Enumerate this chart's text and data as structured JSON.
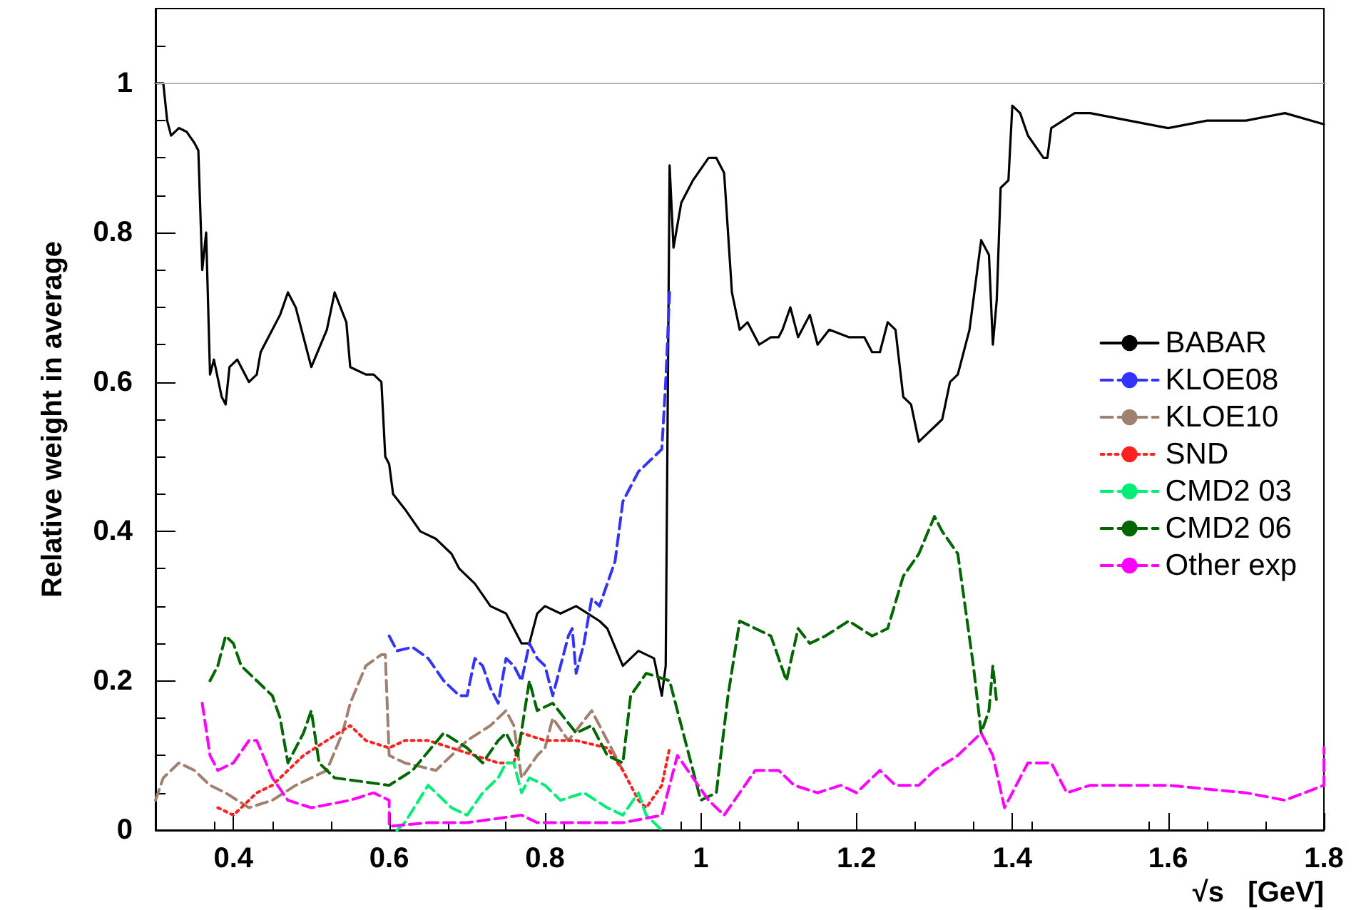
{
  "chart_data": {
    "type": "line",
    "xlabel": "√s   [GeV]",
    "ylabel": "Relative weight in average",
    "xlim": [
      0.3,
      1.8
    ],
    "ylim": [
      0,
      1.1
    ],
    "xticks": [
      0.4,
      0.6,
      0.8,
      1,
      1.2,
      1.4,
      1.6,
      1.8
    ],
    "yticks": [
      0,
      0.2,
      0.4,
      0.6,
      0.8,
      1
    ],
    "grid": false,
    "legend": "right",
    "marker": "none",
    "ref_lines": [
      {
        "axis": "y",
        "value": 1,
        "color": "#b0b0b0",
        "line_style": "solid"
      }
    ],
    "series": [
      {
        "name": "BABAR",
        "color": "#000000",
        "line_style": "solid",
        "x": [
          0.3,
          0.31,
          0.315,
          0.32,
          0.33,
          0.34,
          0.35,
          0.355,
          0.36,
          0.365,
          0.37,
          0.375,
          0.385,
          0.39,
          0.395,
          0.405,
          0.42,
          0.43,
          0.435,
          0.45,
          0.46,
          0.47,
          0.48,
          0.5,
          0.52,
          0.53,
          0.545,
          0.55,
          0.57,
          0.58,
          0.59,
          0.595,
          0.6,
          0.605,
          0.62,
          0.64,
          0.66,
          0.68,
          0.69,
          0.71,
          0.73,
          0.75,
          0.77,
          0.78,
          0.79,
          0.8,
          0.82,
          0.84,
          0.87,
          0.88,
          0.9,
          0.92,
          0.94,
          0.95,
          0.955,
          0.96,
          0.965,
          0.975,
          0.99,
          1.01,
          1.02,
          1.03,
          1.04,
          1.05,
          1.06,
          1.065,
          1.075,
          1.09,
          1.1,
          1.105,
          1.115,
          1.125,
          1.14,
          1.15,
          1.165,
          1.19,
          1.21,
          1.22,
          1.23,
          1.24,
          1.25,
          1.26,
          1.27,
          1.28,
          1.29,
          1.3,
          1.31,
          1.32,
          1.33,
          1.345,
          1.35,
          1.36,
          1.37,
          1.375,
          1.38,
          1.385,
          1.395,
          1.4,
          1.41,
          1.42,
          1.44,
          1.445,
          1.45,
          1.48,
          1.5,
          1.55,
          1.6,
          1.65,
          1.7,
          1.75,
          1.8
        ],
        "values": [
          1.0,
          1.0,
          0.95,
          0.93,
          0.94,
          0.935,
          0.92,
          0.91,
          0.75,
          0.8,
          0.61,
          0.63,
          0.58,
          0.57,
          0.62,
          0.63,
          0.6,
          0.61,
          0.64,
          0.67,
          0.69,
          0.72,
          0.7,
          0.62,
          0.67,
          0.72,
          0.68,
          0.62,
          0.61,
          0.61,
          0.6,
          0.5,
          0.49,
          0.45,
          0.43,
          0.4,
          0.39,
          0.37,
          0.35,
          0.33,
          0.3,
          0.29,
          0.25,
          0.25,
          0.29,
          0.3,
          0.29,
          0.3,
          0.28,
          0.27,
          0.22,
          0.24,
          0.23,
          0.18,
          0.22,
          0.89,
          0.78,
          0.84,
          0.87,
          0.9,
          0.9,
          0.88,
          0.72,
          0.67,
          0.68,
          0.67,
          0.65,
          0.66,
          0.66,
          0.67,
          0.7,
          0.66,
          0.69,
          0.65,
          0.67,
          0.66,
          0.66,
          0.64,
          0.64,
          0.68,
          0.67,
          0.58,
          0.57,
          0.52,
          0.53,
          0.54,
          0.55,
          0.6,
          0.61,
          0.67,
          0.71,
          0.79,
          0.77,
          0.65,
          0.71,
          0.86,
          0.87,
          0.97,
          0.96,
          0.93,
          0.9,
          0.9,
          0.94,
          0.96,
          0.96,
          0.95,
          0.94,
          0.95,
          0.95,
          0.96,
          0.945
        ]
      },
      {
        "name": "KLOE08",
        "color": "#3333ff",
        "line_style": "dashed",
        "x": [
          0.6,
          0.61,
          0.63,
          0.65,
          0.67,
          0.69,
          0.7,
          0.71,
          0.72,
          0.73,
          0.74,
          0.75,
          0.76,
          0.77,
          0.78,
          0.79,
          0.8,
          0.81,
          0.82,
          0.83,
          0.835,
          0.84,
          0.85,
          0.86,
          0.87,
          0.88,
          0.89,
          0.9,
          0.92,
          0.94,
          0.95,
          0.955,
          0.96
        ],
        "values": [
          0.26,
          0.24,
          0.245,
          0.23,
          0.2,
          0.18,
          0.18,
          0.23,
          0.22,
          0.19,
          0.17,
          0.23,
          0.22,
          0.2,
          0.25,
          0.23,
          0.22,
          0.18,
          0.22,
          0.26,
          0.27,
          0.21,
          0.25,
          0.31,
          0.3,
          0.33,
          0.36,
          0.44,
          0.48,
          0.5,
          0.51,
          0.6,
          0.72
        ]
      },
      {
        "name": "KLOE10",
        "color": "#a0806e",
        "line_style": "dashed",
        "x": [
          0.3,
          0.31,
          0.33,
          0.35,
          0.37,
          0.39,
          0.42,
          0.45,
          0.48,
          0.52,
          0.54,
          0.55,
          0.57,
          0.59,
          0.595,
          0.6,
          0.62,
          0.66,
          0.7,
          0.73,
          0.75,
          0.76,
          0.77,
          0.79,
          0.8,
          0.81,
          0.83,
          0.86,
          0.88,
          0.9
        ],
        "values": [
          0.04,
          0.07,
          0.09,
          0.08,
          0.06,
          0.05,
          0.03,
          0.04,
          0.06,
          0.08,
          0.13,
          0.17,
          0.22,
          0.235,
          0.235,
          0.1,
          0.09,
          0.08,
          0.12,
          0.14,
          0.16,
          0.14,
          0.07,
          0.1,
          0.11,
          0.15,
          0.12,
          0.16,
          0.12,
          0.08
        ]
      },
      {
        "name": "SND",
        "color": "#ff2020",
        "line_style": "dotted",
        "x": [
          0.38,
          0.4,
          0.43,
          0.45,
          0.47,
          0.49,
          0.52,
          0.55,
          0.57,
          0.6,
          0.62,
          0.65,
          0.68,
          0.71,
          0.74,
          0.76,
          0.77,
          0.8,
          0.84,
          0.88,
          0.9,
          0.92,
          0.93,
          0.95,
          0.96
        ],
        "values": [
          0.03,
          0.02,
          0.05,
          0.06,
          0.08,
          0.1,
          0.12,
          0.14,
          0.12,
          0.11,
          0.12,
          0.12,
          0.11,
          0.1,
          0.09,
          0.09,
          0.13,
          0.12,
          0.12,
          0.11,
          0.08,
          0.04,
          0.03,
          0.06,
          0.11
        ]
      },
      {
        "name": "CMD2 03",
        "color": "#00ee77",
        "line_style": "dashed",
        "x": [
          0.61,
          0.62,
          0.65,
          0.68,
          0.7,
          0.72,
          0.74,
          0.75,
          0.76,
          0.77,
          0.78,
          0.8,
          0.82,
          0.85,
          0.88,
          0.9,
          0.92,
          0.93,
          0.95
        ],
        "values": [
          0.0,
          0.01,
          0.06,
          0.03,
          0.02,
          0.05,
          0.07,
          0.09,
          0.09,
          0.05,
          0.07,
          0.06,
          0.04,
          0.05,
          0.03,
          0.02,
          0.05,
          0.02,
          0.0
        ]
      },
      {
        "name": "CMD2 06",
        "color": "#006600",
        "line_style": "dashed",
        "x": [
          0.37,
          0.38,
          0.39,
          0.4,
          0.41,
          0.43,
          0.45,
          0.46,
          0.47,
          0.49,
          0.5,
          0.51,
          0.53,
          0.6,
          0.63,
          0.67,
          0.7,
          0.72,
          0.74,
          0.75,
          0.765,
          0.78,
          0.79,
          0.81,
          0.84,
          0.86,
          0.88,
          0.9,
          0.91,
          0.93,
          0.96,
          0.98,
          1.0,
          1.02,
          1.035,
          1.05,
          1.07,
          1.09,
          1.1,
          1.11,
          1.125,
          1.14,
          1.16,
          1.19,
          1.22,
          1.24,
          1.26,
          1.28,
          1.3,
          1.31,
          1.33,
          1.35,
          1.36,
          1.37,
          1.375,
          1.38
        ],
        "values": [
          0.2,
          0.22,
          0.26,
          0.25,
          0.22,
          0.2,
          0.18,
          0.15,
          0.09,
          0.13,
          0.16,
          0.09,
          0.07,
          0.06,
          0.08,
          0.13,
          0.11,
          0.09,
          0.12,
          0.13,
          0.1,
          0.2,
          0.16,
          0.17,
          0.13,
          0.14,
          0.1,
          0.09,
          0.18,
          0.21,
          0.2,
          0.12,
          0.04,
          0.05,
          0.18,
          0.28,
          0.27,
          0.26,
          0.23,
          0.2,
          0.27,
          0.25,
          0.26,
          0.28,
          0.26,
          0.27,
          0.34,
          0.37,
          0.42,
          0.4,
          0.37,
          0.22,
          0.13,
          0.16,
          0.22,
          0.17
        ]
      },
      {
        "name": "Other exp",
        "color": "#ff00ff",
        "line_style": "dashed",
        "x": [
          0.36,
          0.37,
          0.38,
          0.4,
          0.42,
          0.43,
          0.45,
          0.47,
          0.5,
          0.55,
          0.58,
          0.6,
          0.6,
          0.65,
          0.7,
          0.77,
          0.79,
          0.85,
          0.9,
          0.95,
          0.97,
          0.99,
          1.01,
          1.03,
          1.05,
          1.07,
          1.1,
          1.12,
          1.15,
          1.18,
          1.2,
          1.23,
          1.25,
          1.28,
          1.3,
          1.33,
          1.36,
          1.375,
          1.39,
          1.4,
          1.42,
          1.45,
          1.47,
          1.5,
          1.55,
          1.6,
          1.65,
          1.7,
          1.75,
          1.8,
          1.8
        ],
        "values": [
          0.17,
          0.1,
          0.08,
          0.09,
          0.12,
          0.12,
          0.07,
          0.04,
          0.03,
          0.04,
          0.05,
          0.04,
          0.005,
          0.01,
          0.01,
          0.02,
          0.01,
          0.01,
          0.01,
          0.02,
          0.1,
          0.07,
          0.04,
          0.02,
          0.05,
          0.08,
          0.08,
          0.06,
          0.05,
          0.06,
          0.05,
          0.08,
          0.06,
          0.06,
          0.08,
          0.1,
          0.13,
          0.1,
          0.03,
          0.05,
          0.09,
          0.09,
          0.05,
          0.06,
          0.06,
          0.06,
          0.055,
          0.05,
          0.04,
          0.06,
          0.11
        ]
      }
    ]
  }
}
